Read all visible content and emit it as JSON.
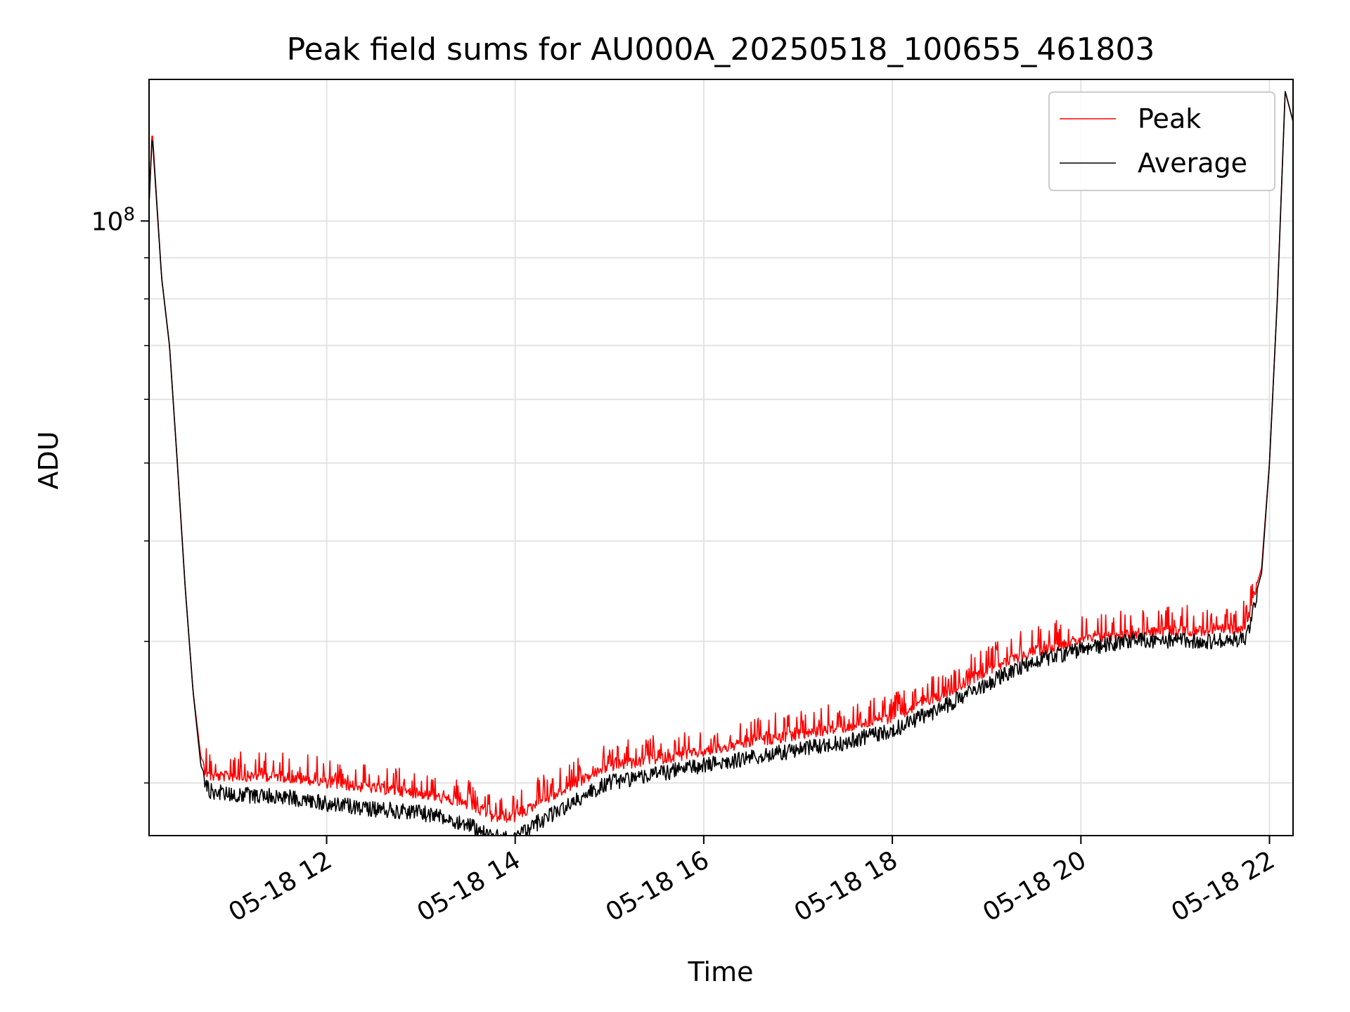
{
  "chart_data": {
    "type": "line",
    "title": "Peak field sums for AU000A_20250518_100655_461803",
    "xlabel": "Time",
    "ylabel": "ADU",
    "x_axis_type": "time",
    "x_ticks": [
      {
        "value": "2025-05-18T12:00",
        "label": "05-18 12"
      },
      {
        "value": "2025-05-18T14:00",
        "label": "05-18 14"
      },
      {
        "value": "2025-05-18T16:00",
        "label": "05-18 16"
      },
      {
        "value": "2025-05-18T18:00",
        "label": "05-18 18"
      },
      {
        "value": "2025-05-18T20:00",
        "label": "05-18 20"
      },
      {
        "value": "2025-05-18T22:00",
        "label": "05-18 22"
      }
    ],
    "xlim": [
      "2025-05-18T10:07",
      "2025-05-18T22:15"
    ],
    "y_scale": "log",
    "ylim": [
      17200000,
      150000000
    ],
    "y_ticks": [
      {
        "value": 100000000,
        "base": "10",
        "exponent": "8"
      }
    ],
    "y_minor_ticks": [
      20000000,
      30000000,
      40000000,
      50000000,
      60000000,
      70000000,
      80000000,
      90000000
    ],
    "grid": true,
    "legend_position": "top-right",
    "series": [
      {
        "name": "Peak",
        "color": "#ff0000",
        "points": [
          [
            "2025-05-18T10:07",
            105000000
          ],
          [
            "2025-05-18T10:09",
            130000000
          ],
          [
            "2025-05-18T10:15",
            85000000
          ],
          [
            "2025-05-18T10:20",
            70000000
          ],
          [
            "2025-05-18T10:25",
            50000000
          ],
          [
            "2025-05-18T10:30",
            35000000
          ],
          [
            "2025-05-18T10:35",
            26000000
          ],
          [
            "2025-05-18T10:40",
            21500000
          ],
          [
            "2025-05-18T10:45",
            20700000
          ],
          [
            "2025-05-18T11:00",
            20700000
          ],
          [
            "2025-05-18T11:30",
            20700000
          ],
          [
            "2025-05-18T12:00",
            20300000
          ],
          [
            "2025-05-18T12:30",
            20000000
          ],
          [
            "2025-05-18T13:00",
            19700000
          ],
          [
            "2025-05-18T13:30",
            19100000
          ],
          [
            "2025-05-18T13:45",
            18400000
          ],
          [
            "2025-05-18T14:00",
            18400000
          ],
          [
            "2025-05-18T14:15",
            19200000
          ],
          [
            "2025-05-18T14:30",
            19800000
          ],
          [
            "2025-05-18T14:45",
            20600000
          ],
          [
            "2025-05-18T15:00",
            21300000
          ],
          [
            "2025-05-18T15:30",
            21700000
          ],
          [
            "2025-05-18T16:00",
            22200000
          ],
          [
            "2025-05-18T16:30",
            22800000
          ],
          [
            "2025-05-18T17:00",
            23300000
          ],
          [
            "2025-05-18T17:30",
            23800000
          ],
          [
            "2025-05-18T18:00",
            24500000
          ],
          [
            "2025-05-18T18:30",
            26000000
          ],
          [
            "2025-05-18T19:00",
            28000000
          ],
          [
            "2025-05-18T19:30",
            29600000
          ],
          [
            "2025-05-18T20:00",
            30600000
          ],
          [
            "2025-05-18T20:30",
            31100000
          ],
          [
            "2025-05-18T21:00",
            31400000
          ],
          [
            "2025-05-18T21:30",
            31400000
          ],
          [
            "2025-05-18T21:45",
            31800000
          ],
          [
            "2025-05-18T21:55",
            37000000
          ],
          [
            "2025-05-18T22:00",
            50000000
          ],
          [
            "2025-05-18T22:05",
            80000000
          ],
          [
            "2025-05-18T22:10",
            145000000
          ],
          [
            "2025-05-18T22:15",
            133000000
          ]
        ]
      },
      {
        "name": "Average",
        "color": "#000000",
        "points": [
          [
            "2025-05-18T10:07",
            105000000
          ],
          [
            "2025-05-18T10:09",
            128000000
          ],
          [
            "2025-05-18T10:15",
            85000000
          ],
          [
            "2025-05-18T10:20",
            70000000
          ],
          [
            "2025-05-18T10:25",
            50000000
          ],
          [
            "2025-05-18T10:30",
            35000000
          ],
          [
            "2025-05-18T10:35",
            26000000
          ],
          [
            "2025-05-18T10:40",
            21000000
          ],
          [
            "2025-05-18T10:45",
            20000000
          ],
          [
            "2025-05-18T11:00",
            19800000
          ],
          [
            "2025-05-18T11:30",
            19700000
          ],
          [
            "2025-05-18T12:00",
            19300000
          ],
          [
            "2025-05-18T12:30",
            19000000
          ],
          [
            "2025-05-18T13:00",
            18800000
          ],
          [
            "2025-05-18T13:30",
            18200000
          ],
          [
            "2025-05-18T13:45",
            17500000
          ],
          [
            "2025-05-18T14:00",
            17500000
          ],
          [
            "2025-05-18T14:15",
            18300000
          ],
          [
            "2025-05-18T14:30",
            19000000
          ],
          [
            "2025-05-18T14:45",
            19800000
          ],
          [
            "2025-05-18T15:00",
            20500000
          ],
          [
            "2025-05-18T15:30",
            21000000
          ],
          [
            "2025-05-18T16:00",
            21500000
          ],
          [
            "2025-05-18T16:30",
            22000000
          ],
          [
            "2025-05-18T17:00",
            22500000
          ],
          [
            "2025-05-18T17:30",
            23000000
          ],
          [
            "2025-05-18T18:00",
            23800000
          ],
          [
            "2025-05-18T18:30",
            25300000
          ],
          [
            "2025-05-18T19:00",
            27200000
          ],
          [
            "2025-05-18T19:30",
            29000000
          ],
          [
            "2025-05-18T20:00",
            30000000
          ],
          [
            "2025-05-18T20:30",
            30800000
          ],
          [
            "2025-05-18T21:00",
            30800000
          ],
          [
            "2025-05-18T21:30",
            30700000
          ],
          [
            "2025-05-18T21:45",
            31000000
          ],
          [
            "2025-05-18T21:55",
            36500000
          ],
          [
            "2025-05-18T22:00",
            50000000
          ],
          [
            "2025-05-18T22:05",
            80000000
          ],
          [
            "2025-05-18T22:10",
            145000000
          ],
          [
            "2025-05-18T22:15",
            133000000
          ]
        ]
      }
    ]
  }
}
